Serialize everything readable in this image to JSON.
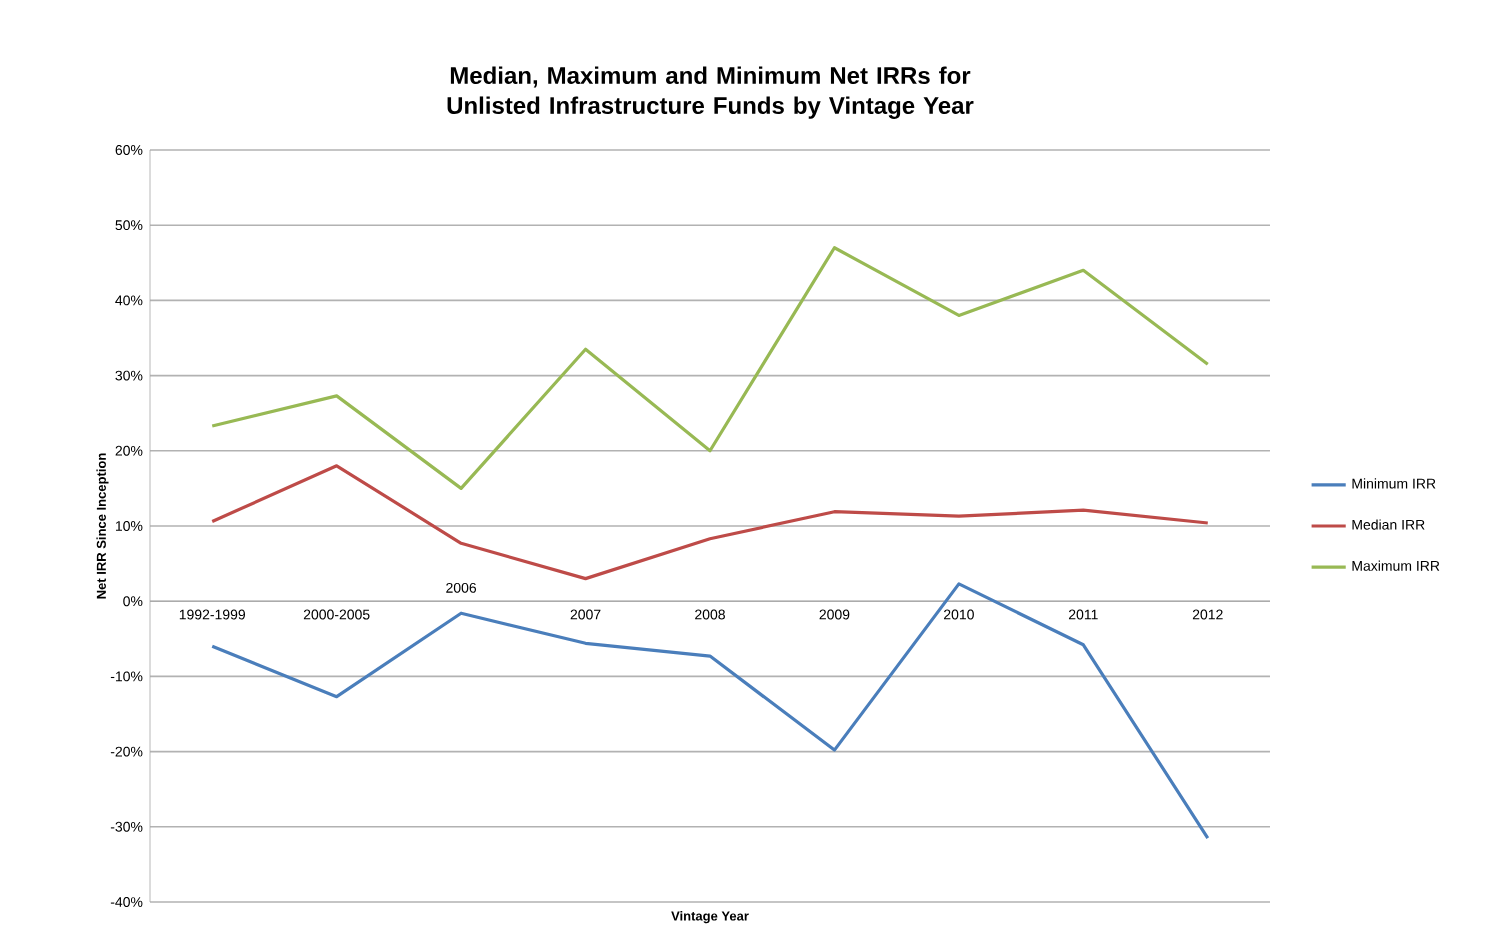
{
  "chart_data": {
    "type": "line",
    "title": "Median, Maximum and Minimum Net IRRs for Unlisted Infrastructure Funds by Vintage Year",
    "xlabel": "Vintage Year",
    "ylabel": "Net IRR Since Inception",
    "categories": [
      "1992-1999",
      "2000-2005",
      "2006",
      "2007",
      "2008",
      "2009",
      "2010",
      "2011",
      "2012"
    ],
    "series": [
      {
        "name": "Minimum IRR",
        "color": "#4a7ebb",
        "values": [
          -6,
          -12.7,
          -1.6,
          -5.6,
          -7.3,
          -19.8,
          2.3,
          -5.8,
          -31.5
        ]
      },
      {
        "name": "Median IRR",
        "color": "#be4b48",
        "values": [
          10.6,
          18,
          7.7,
          3,
          8.3,
          11.9,
          11.3,
          12.1,
          10.4
        ]
      },
      {
        "name": "Maximum IRR",
        "color": "#98b954",
        "values": [
          23.3,
          27.3,
          15,
          33.5,
          20,
          47,
          38,
          44,
          31.5
        ]
      }
    ],
    "ylim": [
      -40,
      60
    ],
    "yticks": [
      {
        "value": -40,
        "label": "-40%"
      },
      {
        "value": -30,
        "label": "-30%"
      },
      {
        "value": -20,
        "label": "-20%"
      },
      {
        "value": -10,
        "label": "-10%"
      },
      {
        "value": 0,
        "label": "0%"
      },
      {
        "value": 10,
        "label": "10%"
      },
      {
        "value": 20,
        "label": "20%"
      },
      {
        "value": 30,
        "label": "30%"
      },
      {
        "value": 40,
        "label": "40%"
      },
      {
        "value": 50,
        "label": "50%"
      },
      {
        "value": 60,
        "label": "60%"
      }
    ],
    "grid": "y",
    "legend": "right",
    "marker": "none",
    "line_style": "solid"
  }
}
